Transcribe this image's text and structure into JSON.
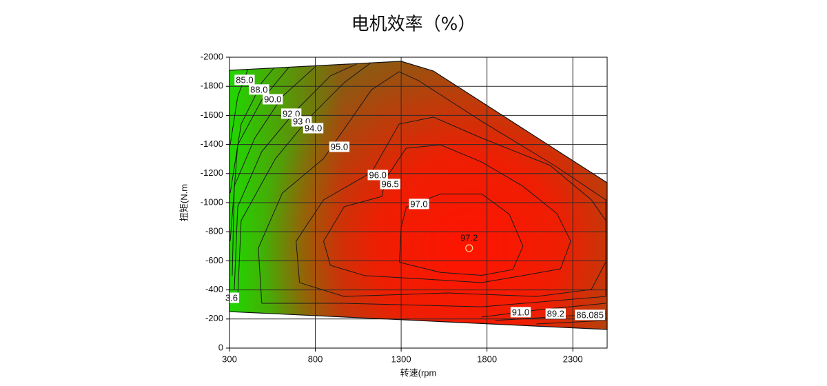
{
  "chart_data": {
    "type": "contour",
    "title": "电机效率（%）",
    "xlabel": "转速(rpm",
    "ylabel": "扭矩(N.m",
    "xlim": [
      300,
      2500
    ],
    "ylim": [
      0,
      -2000
    ],
    "xticks": [
      300,
      800,
      1300,
      1800,
      2300
    ],
    "yticks": [
      0,
      -200,
      -400,
      -600,
      -800,
      -1000,
      -1200,
      -1400,
      -1600,
      -1800,
      -2000
    ],
    "grid": true,
    "colors": {
      "max": "#ff1400",
      "mid": "#8c5a12",
      "min": "#20d800",
      "line": "#1a1a1a",
      "grid": "#2a2a2a"
    },
    "boundary": {
      "x": [
        300,
        1300,
        1488,
        2500,
        2500,
        300
      ],
      "y": [
        -1910,
        -1972,
        -1905,
        -1137,
        -128,
        -251
      ]
    },
    "contours": [
      {
        "x": [
          1290,
          1300,
          1330,
          1530,
          1770,
          1930,
          2010,
          1950,
          1770,
          1530,
          1290
        ],
        "y": [
          -590,
          -830,
          -970,
          -1060,
          -1060,
          -920,
          -700,
          -540,
          -500,
          -520,
          -590
        ]
      },
      {
        "x": [
          888,
          848,
          968,
          1188,
          1208,
          1328,
          1528,
          1768,
          2008,
          2208,
          2288,
          2228,
          2008,
          1768,
          1448,
          1088,
          888
        ],
        "y": [
          -569,
          -735,
          -972,
          -1043,
          -1161,
          -1374,
          -1398,
          -1280,
          -1114,
          -924,
          -735,
          -545,
          -498,
          -450,
          -474,
          -498,
          -569
        ]
      },
      {
        "x": [
          708,
          688,
          848,
          1128,
          1288,
          1488,
          1768,
          2168,
          2408,
          2492,
          2492,
          2408,
          2088,
          1568,
          968,
          708
        ],
        "y": [
          -450,
          -735,
          -1019,
          -1209,
          -1540,
          -1588,
          -1445,
          -1256,
          -1019,
          -877,
          -592,
          -403,
          -355,
          -379,
          -355,
          -450
        ]
      },
      {
        "x": [
          488,
          468,
          608,
          848,
          1128,
          1288,
          1400,
          1768,
          2200,
          2492,
          2492,
          1768,
          968,
          488
        ],
        "y": [
          -308,
          -687,
          -1066,
          -1303,
          -1777,
          -1900,
          -1840,
          -1560,
          -1250,
          -1019,
          -355,
          -284,
          -308,
          -308
        ]
      },
      {
        "x": [
          348,
          368,
          568,
          768,
          968,
          1128
        ],
        "y": [
          -355,
          -877,
          -1303,
          -1588,
          -1825,
          -1966
        ]
      },
      {
        "x": [
          328,
          348,
          488,
          688,
          888,
          1048
        ],
        "y": [
          -403,
          -972,
          -1351,
          -1635,
          -1872,
          -1957
        ]
      },
      {
        "x": [
          316,
          328,
          448,
          608,
          808
        ],
        "y": [
          -498,
          -1114,
          -1445,
          -1730,
          -1943
        ]
      },
      {
        "x": [
          304,
          348,
          488,
          648
        ],
        "y": [
          -735,
          -1398,
          -1706,
          -1934
        ]
      },
      {
        "x": [
          304,
          368,
          488,
          568
        ],
        "y": [
          -1066,
          -1540,
          -1825,
          -1938
        ]
      },
      {
        "x": [
          304,
          348,
          408
        ],
        "y": [
          -1398,
          -1730,
          -1919
        ]
      },
      {
        "x": [
          1768,
          2088,
          2492
        ],
        "y": [
          -213,
          -261,
          -308
        ]
      },
      {
        "x": [
          1848,
          2168,
          2492
        ],
        "y": [
          -190,
          -213,
          -237
        ]
      },
      {
        "x": [
          2088,
          2492
        ],
        "y": [
          -166,
          -190
        ]
      }
    ],
    "labels": [
      {
        "text": "85.0",
        "x": 388,
        "y": -1839
      },
      {
        "text": "88.0",
        "x": 472,
        "y": -1773
      },
      {
        "text": "90.0",
        "x": 552,
        "y": -1706
      },
      {
        "text": "92.0",
        "x": 660,
        "y": -1607
      },
      {
        "text": "93.0",
        "x": 720,
        "y": -1554
      },
      {
        "text": "94.0",
        "x": 788,
        "y": -1507
      },
      {
        "text": "95.0",
        "x": 940,
        "y": -1379
      },
      {
        "text": "96.0",
        "x": 1164,
        "y": -1185
      },
      {
        "text": "96.5",
        "x": 1236,
        "y": -1123
      },
      {
        "text": "97.0",
        "x": 1404,
        "y": -986
      },
      {
        "text": "91.0",
        "x": 1996,
        "y": -242
      },
      {
        "text": "89.2",
        "x": 2200,
        "y": -232
      },
      {
        "text": "86.085",
        "x": 2400,
        "y": -223
      },
      {
        "text": "3.6",
        "x": 312,
        "y": -341
      }
    ],
    "peak": {
      "label": "97.2",
      "x": 1696,
      "y": -687
    }
  }
}
